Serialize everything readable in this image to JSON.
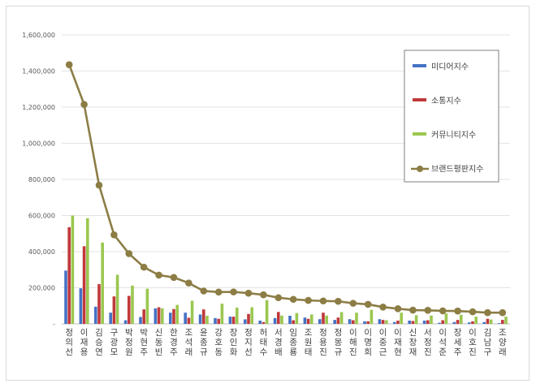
{
  "chart_data": {
    "type": "bar",
    "categories": [
      "정의선",
      "이재용",
      "김승연",
      "구광모",
      "박정원",
      "박현주",
      "신동빈",
      "한경주",
      "조석래",
      "윤종규",
      "강호동",
      "장인화",
      "정지선",
      "허태수",
      "서경배",
      "임종룡",
      "조원태",
      "정용진",
      "정몽규",
      "이해진",
      "이명희",
      "이중근",
      "이재현",
      "신창재",
      "서정진",
      "이석준",
      "장세주",
      "이호진",
      "김남구",
      "조양래"
    ],
    "series": [
      {
        "name": "미디어지수",
        "color": "#4472c4",
        "values": [
          295000,
          197000,
          95000,
          62000,
          20000,
          38000,
          86000,
          62000,
          62000,
          52000,
          32000,
          40000,
          25000,
          18000,
          32000,
          45000,
          35000,
          26000,
          22000,
          26000,
          14000,
          26000,
          10000,
          18000,
          18000,
          6000,
          10000,
          8000,
          10000,
          4000
        ]
      },
      {
        "name": "소통지수",
        "color": "#c0393b",
        "values": [
          535000,
          430000,
          220000,
          152000,
          155000,
          80000,
          92000,
          82000,
          34000,
          80000,
          28000,
          40000,
          55000,
          10000,
          66000,
          20000,
          28000,
          62000,
          35000,
          20000,
          14000,
          22000,
          18000,
          16000,
          20000,
          20000,
          22000,
          14000,
          28000,
          22000
        ]
      },
      {
        "name": "커뮤니티지수",
        "color": "#9bc750",
        "values": [
          600000,
          585000,
          450000,
          272000,
          212000,
          195000,
          86000,
          105000,
          128000,
          45000,
          112000,
          90000,
          92000,
          132000,
          46000,
          60000,
          52000,
          46000,
          65000,
          62000,
          78000,
          20000,
          62000,
          48000,
          46000,
          58000,
          50000,
          40000,
          24000,
          40000
        ]
      },
      {
        "name": "브랜드평판지수",
        "color": "#8c7d45",
        "values": [
          1435000,
          1215000,
          768000,
          493000,
          389000,
          314000,
          270000,
          257000,
          226000,
          182000,
          176000,
          177000,
          170000,
          161000,
          145000,
          136000,
          130000,
          127000,
          125000,
          114000,
          108000,
          93000,
          84000,
          76000,
          75000,
          72000,
          71000,
          67000,
          62000,
          62000
        ]
      }
    ],
    "ylim": [
      0,
      1600000
    ],
    "y_ticks": [
      "-",
      "200,000",
      "400,000",
      "600,000",
      "800,000",
      "1,000,000",
      "1,200,000",
      "1,400,000",
      "1,600,000"
    ],
    "grid": true,
    "legend_position": "right"
  }
}
